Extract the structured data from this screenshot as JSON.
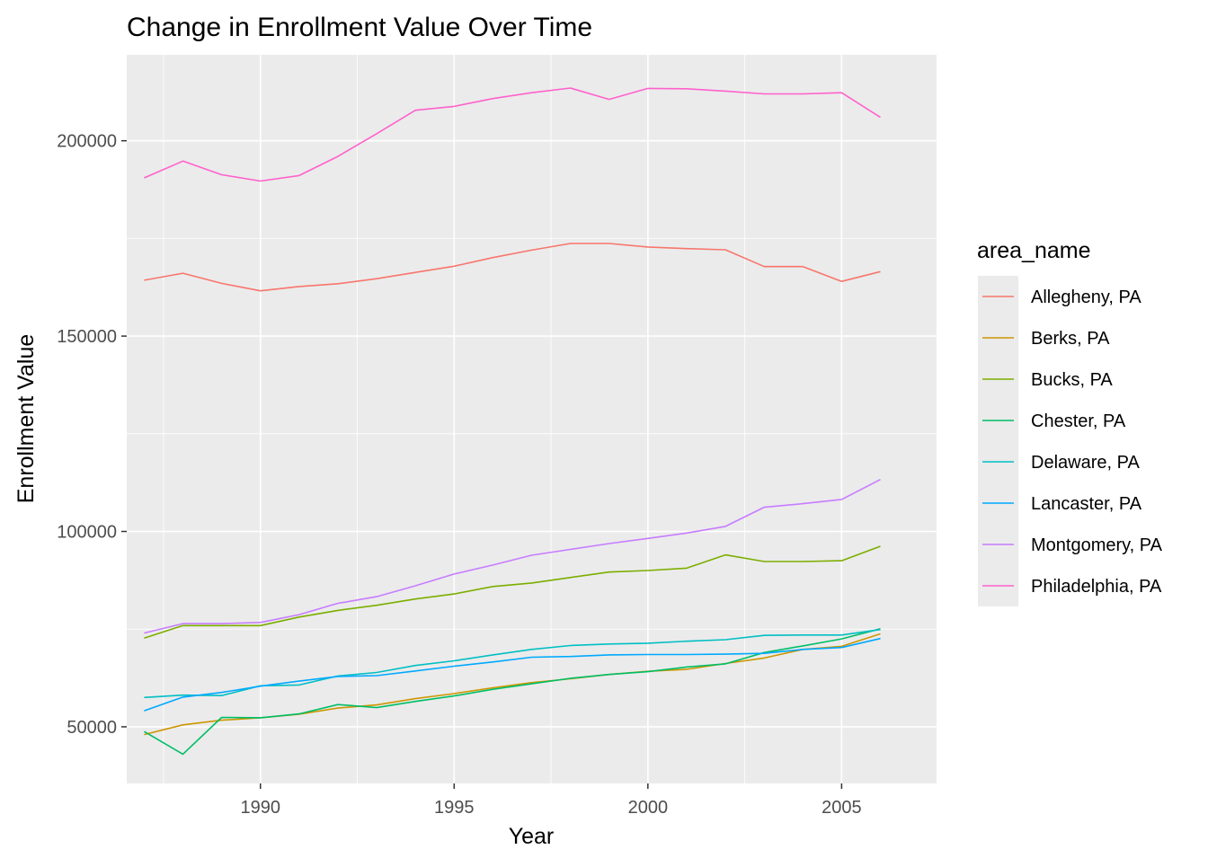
{
  "chart_data": {
    "type": "line",
    "title": "Change in Enrollment Value Over Time",
    "xlabel": "Year",
    "ylabel": "Enrollment Value",
    "legend_title": "area_name",
    "legend_position": "right",
    "grid": true,
    "xlim": [
      1986.55,
      2007.45
    ],
    "ylim": [
      35500,
      222000
    ],
    "x_major_ticks": [
      1990,
      1995,
      2000,
      2005
    ],
    "y_major_ticks": [
      50000,
      100000,
      150000,
      200000
    ],
    "x": [
      1987,
      1988,
      1989,
      1990,
      1991,
      1992,
      1993,
      1994,
      1995,
      1996,
      1997,
      1998,
      1999,
      2000,
      2001,
      2002,
      2003,
      2004,
      2005,
      2006
    ],
    "series": [
      {
        "name": "Allegheny, PA",
        "color": "#F8766D",
        "values": [
          164300,
          166100,
          163500,
          161600,
          162700,
          163400,
          164700,
          166300,
          167900,
          170100,
          172000,
          173700,
          173700,
          172800,
          172400,
          172100,
          167800,
          167800,
          164000,
          166500
        ]
      },
      {
        "name": "Berks, PA",
        "color": "#CD9600",
        "values": [
          48000,
          50500,
          51700,
          52300,
          53200,
          54800,
          55600,
          57200,
          58500,
          60000,
          61300,
          62300,
          63400,
          64200,
          64700,
          66200,
          67600,
          69800,
          70600,
          73800
        ]
      },
      {
        "name": "Bucks, PA",
        "color": "#7CAE00",
        "values": [
          72700,
          75900,
          75900,
          75900,
          78100,
          79800,
          81100,
          82700,
          84000,
          85900,
          86800,
          88200,
          89600,
          90000,
          90600,
          94000,
          92300,
          92300,
          92500,
          96200
        ]
      },
      {
        "name": "Chester, PA",
        "color": "#00BE67",
        "values": [
          48800,
          43000,
          52400,
          52300,
          53300,
          55700,
          54900,
          56500,
          57900,
          59600,
          61000,
          62400,
          63400,
          64100,
          65300,
          66100,
          69000,
          70700,
          72500,
          75100
        ]
      },
      {
        "name": "Delaware, PA",
        "color": "#00BFC4",
        "values": [
          57500,
          58100,
          58000,
          60500,
          60700,
          63000,
          63900,
          65700,
          66900,
          68400,
          69800,
          70800,
          71200,
          71400,
          71900,
          72300,
          73400,
          73500,
          73500,
          74900
        ]
      },
      {
        "name": "Lancaster, PA",
        "color": "#00A9FF",
        "values": [
          54100,
          57600,
          58800,
          60400,
          61700,
          62900,
          63100,
          64300,
          65500,
          66600,
          67800,
          68000,
          68400,
          68500,
          68500,
          68600,
          68800,
          69800,
          70300,
          72600
        ]
      },
      {
        "name": "Montgomery, PA",
        "color": "#C77CFF",
        "values": [
          74000,
          76400,
          76400,
          76700,
          78700,
          81600,
          83300,
          86100,
          89100,
          91400,
          93900,
          95400,
          96900,
          98200,
          99600,
          101300,
          106200,
          107100,
          108200,
          113300
        ]
      },
      {
        "name": "Philadelphia, PA",
        "color": "#FF61CC",
        "values": [
          190500,
          194800,
          191300,
          189700,
          191100,
          196000,
          201800,
          207800,
          208800,
          210800,
          212300,
          213500,
          210600,
          213400,
          213300,
          212700,
          212000,
          212000,
          212300,
          206000
        ]
      }
    ]
  }
}
